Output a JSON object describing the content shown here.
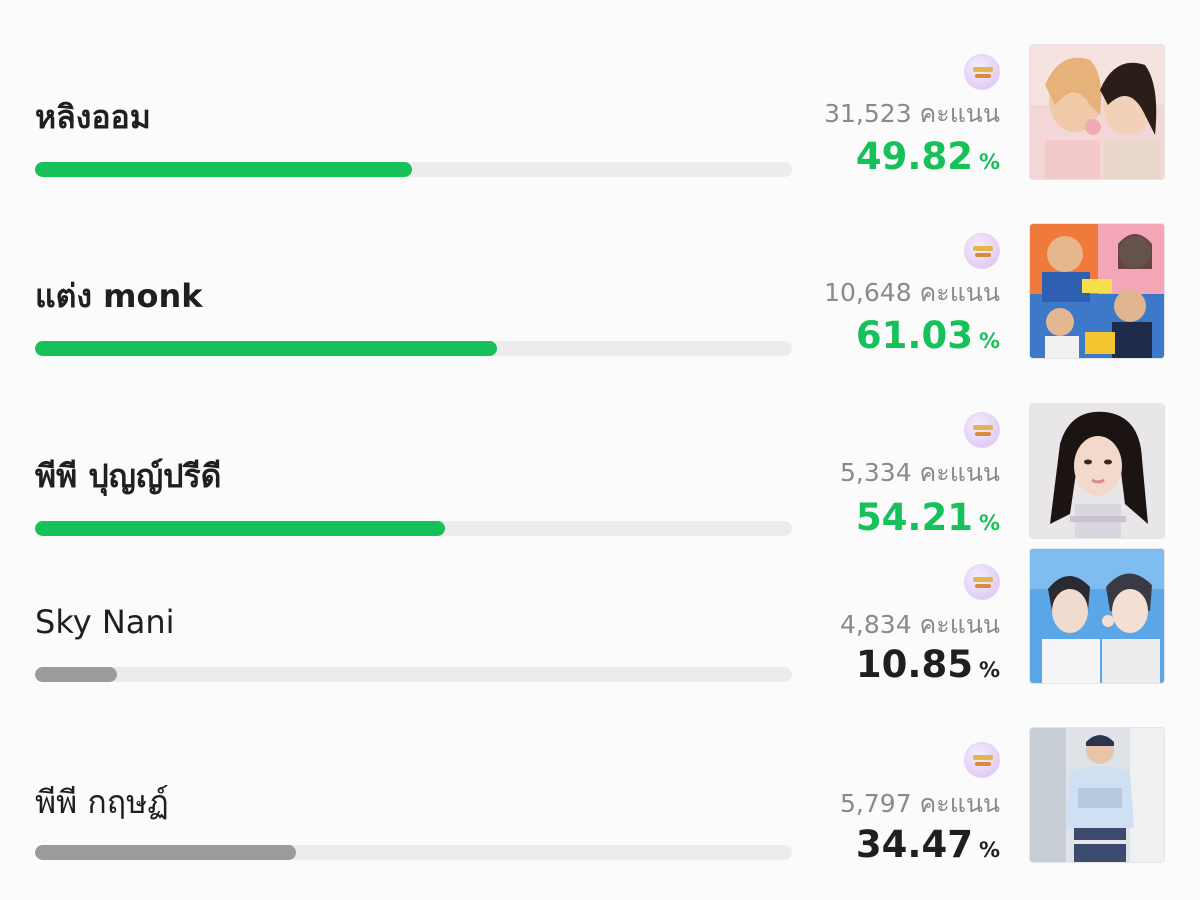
{
  "entries": [
    {
      "name": "หลิงออม",
      "score": "31,523 คะแนน",
      "percent": "49.82",
      "percent_symbol": "%",
      "progress": 0.4982,
      "highlight": true
    },
    {
      "name": "แต่ง monk",
      "score": "10,648 คะแนน",
      "percent": "61.03",
      "percent_symbol": "%",
      "progress": 0.6103,
      "highlight": true
    },
    {
      "name": "พีพี ปุญญ์ปรีดี",
      "score": "5,334 คะแนน",
      "percent": "54.21",
      "percent_symbol": "%",
      "progress": 0.5421,
      "highlight": true
    },
    {
      "name": "Sky Nani",
      "score": "4,834 คะแนน",
      "percent": "10.85",
      "percent_symbol": "%",
      "progress": 0.1085,
      "highlight": false
    },
    {
      "name": "พีพี กฤษฏ์",
      "score": "5,797 คะแนน",
      "percent": "34.47",
      "percent_symbol": "%",
      "progress": 0.3447,
      "highlight": false
    }
  ],
  "colors": {
    "accent": "#16c15a",
    "muted_bar": "#9b9b9b",
    "track": "#ececec"
  },
  "icons": {
    "badge": "award-badge-icon"
  }
}
